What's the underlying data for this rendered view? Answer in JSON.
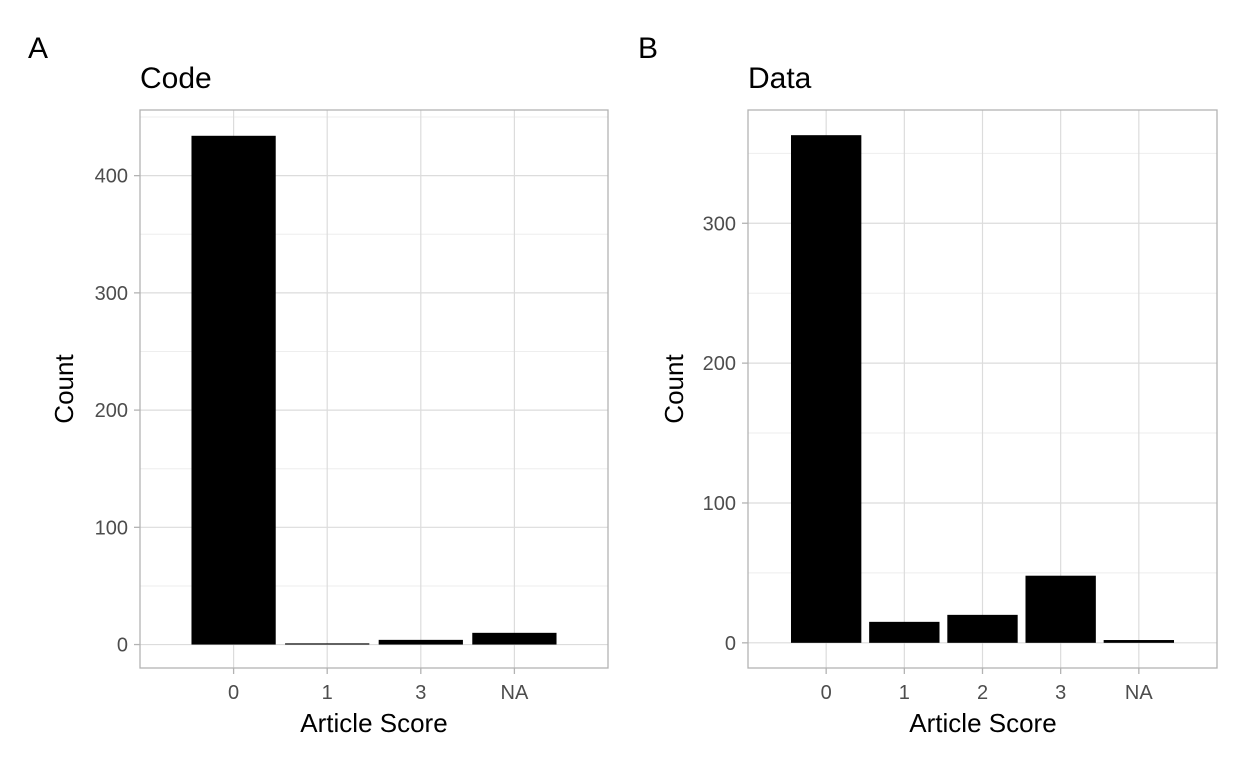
{
  "chart_data": [
    {
      "type": "bar",
      "panel_label": "A",
      "title": "Code",
      "xlabel": "Article Score",
      "ylabel": "Count",
      "categories": [
        "0",
        "1",
        "3",
        "NA"
      ],
      "values": [
        434,
        1,
        4,
        10
      ],
      "ylim": [
        -20,
        456
      ],
      "yticks": [
        0,
        100,
        200,
        300,
        400
      ],
      "yticks_minor": [
        50,
        150,
        250,
        350,
        450
      ],
      "grid": true,
      "bar_color": "#000000"
    },
    {
      "type": "bar",
      "panel_label": "B",
      "title": "Data",
      "xlabel": "Article Score",
      "ylabel": "Count",
      "categories": [
        "0",
        "1",
        "2",
        "3",
        "NA"
      ],
      "values": [
        363,
        15,
        20,
        48,
        2
      ],
      "ylim": [
        -18,
        381
      ],
      "yticks": [
        0,
        100,
        200,
        300
      ],
      "yticks_minor": [
        50,
        150,
        250,
        350
      ],
      "grid": true,
      "bar_color": "#000000"
    }
  ]
}
